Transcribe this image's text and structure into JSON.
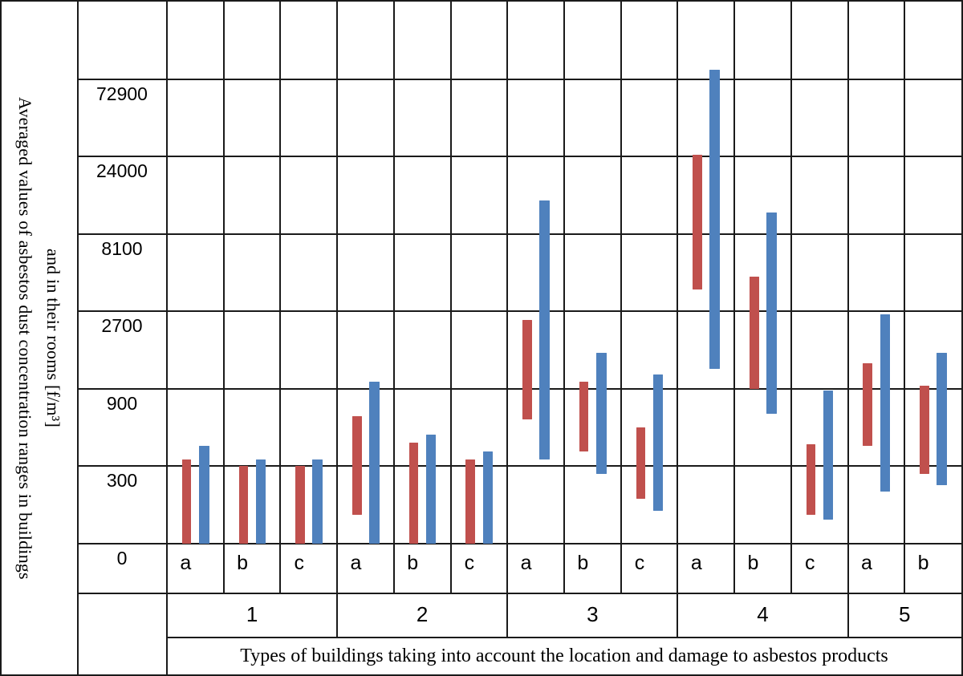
{
  "figure": {
    "y_axis_title": "Averaged values of asbestos dust concentration ranges in buildings\nand in their rooms [f/m³]",
    "x_axis_title": "Types of buildings taking into account the location and damage to asbestos products"
  },
  "chart_data": {
    "type": "bar",
    "subtype": "floating-range-bars",
    "scale": "log-base-3, baseline value 100 (labeled 0), one grid row per ×3",
    "grid": "on",
    "ylabel": "Averaged values of asbestos dust concentration ranges in buildings and in their rooms [f/m³]",
    "xlabel": "Types of buildings taking into account the location and damage to asbestos products",
    "y_ticks": [
      {
        "label": "72900",
        "level": 6
      },
      {
        "label": "24000",
        "level": 5
      },
      {
        "label": "8100",
        "level": 4
      },
      {
        "label": "2700",
        "level": 3
      },
      {
        "label": "900",
        "level": 2
      },
      {
        "label": "300",
        "level": 1
      },
      {
        "label": "0",
        "level": 0
      }
    ],
    "series_colors": {
      "red": "#c0504d",
      "blue": "#4f81bd"
    },
    "series_note": "each category shows two min–max range bars: red (buildings) and blue (rooms), values in f/m³",
    "groups": [
      {
        "label": "1",
        "categories": [
          {
            "label": "a",
            "red": [
              100,
              330
            ],
            "blue": [
              100,
              400
            ]
          },
          {
            "label": "b",
            "red": [
              100,
              300
            ],
            "blue": [
              100,
              330
            ]
          },
          {
            "label": "c",
            "red": [
              100,
              300
            ],
            "blue": [
              100,
              330
            ]
          }
        ]
      },
      {
        "label": "2",
        "categories": [
          {
            "label": "a",
            "red": [
              150,
              610
            ],
            "blue": [
              100,
              1000
            ]
          },
          {
            "label": "b",
            "red": [
              100,
              420
            ],
            "blue": [
              100,
              470
            ]
          },
          {
            "label": "c",
            "red": [
              100,
              330
            ],
            "blue": [
              100,
              370
            ]
          }
        ]
      },
      {
        "label": "3",
        "categories": [
          {
            "label": "a",
            "red": [
              580,
              2400
            ],
            "blue": [
              330,
              13000
            ]
          },
          {
            "label": "b",
            "red": [
              370,
              1000
            ],
            "blue": [
              270,
              1500
            ]
          },
          {
            "label": "c",
            "red": [
              190,
              520
            ],
            "blue": [
              160,
              1100
            ]
          }
        ]
      },
      {
        "label": "4",
        "categories": [
          {
            "label": "a",
            "red": [
              3700,
              25000
            ],
            "blue": [
              1200,
              83000
            ]
          },
          {
            "label": "b",
            "red": [
              900,
              4400
            ],
            "blue": [
              630,
              11000
            ]
          },
          {
            "label": "c",
            "red": [
              150,
              410
            ],
            "blue": [
              140,
              880
            ]
          }
        ]
      },
      {
        "label": "5",
        "categories": [
          {
            "label": "a",
            "red": [
              400,
              1300
            ],
            "blue": [
              210,
              2600
            ]
          },
          {
            "label": "b",
            "red": [
              270,
              940
            ],
            "blue": [
              230,
              1500
            ]
          }
        ]
      }
    ]
  }
}
